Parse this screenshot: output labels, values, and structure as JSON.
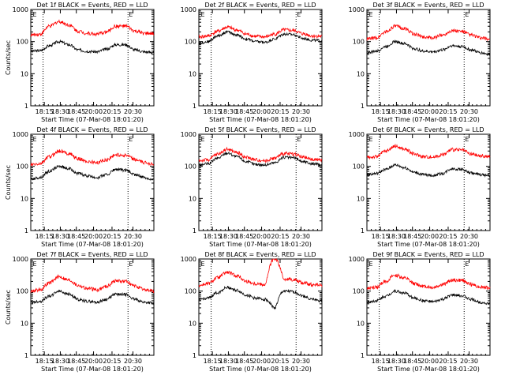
{
  "ylabel": "Counts/sec",
  "xlabel": "Start Time (07-Mar-08 18:01:20)",
  "x_ticks": [
    "18:15",
    "18:30",
    "18:45",
    "20:00",
    "20:15",
    "20:30"
  ],
  "y_ticks": [
    "1",
    "10",
    "100",
    "1000"
  ],
  "marker": "E",
  "colors": {
    "events": "#000000",
    "lld": "#ff0000",
    "axes": "#000000"
  },
  "chart_data": [
    {
      "type": "line",
      "title": "Det 1f BLACK = Events, RED = LLD",
      "ylim": [
        1,
        1000
      ],
      "yscale": "log",
      "series": [
        {
          "name": "Events",
          "values": [
            50,
            52,
            75,
            100,
            80,
            55,
            50,
            48,
            58,
            80,
            80,
            55,
            48,
            46
          ]
        },
        {
          "name": "LLD",
          "values": [
            160,
            170,
            300,
            420,
            330,
            210,
            180,
            170,
            200,
            300,
            300,
            210,
            180,
            175
          ]
        }
      ]
    },
    {
      "type": "line",
      "title": "Det 2f BLACK = Events, RED = LLD",
      "ylim": [
        1,
        1000
      ],
      "yscale": "log",
      "series": [
        {
          "name": "Events",
          "values": [
            90,
            100,
            150,
            200,
            160,
            120,
            100,
            95,
            120,
            170,
            165,
            125,
            110,
            105
          ]
        },
        {
          "name": "LLD",
          "values": [
            140,
            150,
            210,
            280,
            230,
            170,
            145,
            140,
            170,
            230,
            220,
            175,
            150,
            145
          ]
        }
      ]
    },
    {
      "type": "line",
      "title": "Det 3f BLACK = Events, RED = LLD",
      "ylim": [
        1,
        1000
      ],
      "yscale": "log",
      "series": [
        {
          "name": "Events",
          "values": [
            45,
            50,
            70,
            100,
            85,
            60,
            50,
            48,
            55,
            75,
            70,
            55,
            45,
            40
          ]
        },
        {
          "name": "LLD",
          "values": [
            120,
            130,
            200,
            300,
            250,
            170,
            140,
            130,
            160,
            220,
            210,
            160,
            130,
            120
          ]
        }
      ]
    },
    {
      "type": "line",
      "title": "Det 4f BLACK = Events, RED = LLD",
      "ylim": [
        1,
        1000
      ],
      "yscale": "log",
      "series": [
        {
          "name": "Events",
          "values": [
            40,
            45,
            70,
            100,
            85,
            60,
            50,
            45,
            55,
            80,
            75,
            55,
            45,
            38
          ]
        },
        {
          "name": "LLD",
          "values": [
            110,
            120,
            200,
            300,
            250,
            170,
            140,
            130,
            160,
            230,
            220,
            160,
            130,
            120
          ]
        }
      ]
    },
    {
      "type": "line",
      "title": "Det 5f BLACK = Events, RED = LLD",
      "ylim": [
        1,
        1000
      ],
      "yscale": "log",
      "series": [
        {
          "name": "Events",
          "values": [
            110,
            120,
            180,
            260,
            200,
            140,
            115,
            110,
            130,
            190,
            185,
            140,
            120,
            110
          ]
        },
        {
          "name": "LLD",
          "values": [
            150,
            160,
            240,
            340,
            270,
            190,
            160,
            150,
            180,
            250,
            245,
            190,
            165,
            155
          ]
        }
      ]
    },
    {
      "type": "line",
      "title": "Det 6f BLACK = Events, RED = LLD",
      "ylim": [
        1,
        1000
      ],
      "yscale": "log",
      "series": [
        {
          "name": "Events",
          "values": [
            55,
            60,
            80,
            110,
            90,
            65,
            55,
            52,
            60,
            85,
            80,
            62,
            55,
            52
          ]
        },
        {
          "name": "LLD",
          "values": [
            190,
            200,
            300,
            420,
            340,
            240,
            200,
            195,
            230,
            330,
            320,
            240,
            210,
            200
          ]
        }
      ]
    },
    {
      "type": "line",
      "title": "Det 7f BLACK = Events, RED = LLD",
      "ylim": [
        1,
        1000
      ],
      "yscale": "log",
      "series": [
        {
          "name": "Events",
          "values": [
            45,
            48,
            70,
            100,
            80,
            55,
            48,
            45,
            55,
            80,
            78,
            55,
            45,
            42
          ]
        },
        {
          "name": "LLD",
          "values": [
            100,
            110,
            180,
            280,
            220,
            150,
            120,
            110,
            140,
            210,
            200,
            140,
            110,
            100
          ]
        }
      ]
    },
    {
      "type": "line",
      "title": "Det 8f BLACK = Events, RED = LLD",
      "ylim": [
        1,
        1000
      ],
      "yscale": "log",
      "series": [
        {
          "name": "Events",
          "values": [
            55,
            60,
            90,
            130,
            105,
            75,
            60,
            55,
            30,
            100,
            95,
            70,
            55,
            50
          ]
        },
        {
          "name": "LLD",
          "values": [
            150,
            170,
            260,
            380,
            300,
            200,
            170,
            160,
            1000,
            240,
            230,
            180,
            160,
            150
          ]
        }
      ]
    },
    {
      "type": "line",
      "title": "Det 9f BLACK = Events, RED = LLD",
      "ylim": [
        1,
        1000
      ],
      "yscale": "log",
      "series": [
        {
          "name": "Events",
          "values": [
            45,
            50,
            70,
            100,
            85,
            60,
            50,
            46,
            55,
            75,
            72,
            55,
            45,
            40
          ]
        },
        {
          "name": "LLD",
          "values": [
            120,
            130,
            200,
            310,
            250,
            170,
            140,
            130,
            160,
            220,
            215,
            160,
            135,
            125
          ]
        }
      ]
    }
  ]
}
